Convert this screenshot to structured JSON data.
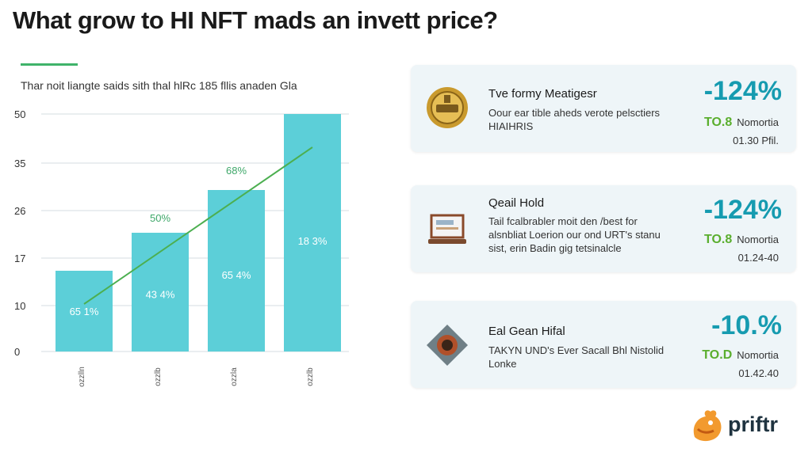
{
  "title": "What grow to HI NFT mads an invett price?",
  "subtitle": "Thar noit liangte saids sith thal hlRc 185 fllis anaden Gla",
  "chart_data": {
    "type": "bar",
    "y_ticks": [
      "50",
      "35",
      "26",
      "17",
      "10",
      "0"
    ],
    "categories": [
      "ozzlln",
      "ozzlb",
      "ozzla",
      "ozzlb"
    ],
    "values": [
      17,
      25,
      34,
      50
    ],
    "bar_labels": [
      "65 1%",
      "43 4%",
      "65 4%",
      "18 3%"
    ],
    "line_labels": [
      "50%",
      "68%"
    ],
    "trend_line": [
      10,
      43
    ],
    "ylim": [
      0,
      50
    ],
    "grid": true,
    "colors": {
      "bar": "#5ccfd8",
      "line": "#4caf50",
      "line_label": "#3fa86a"
    }
  },
  "cards": [
    {
      "icon": "coin-icon",
      "title": "Tve formy Meatigesr",
      "description": "Oour ear tible aheds verote pelsctiers HIAIHRIS",
      "value": "-124%",
      "change": "TO.8",
      "change_label": "Nomortia",
      "time": "01.30 Pfil."
    },
    {
      "icon": "laptop-icon",
      "title": "Qeail Hold",
      "description": "Tail fcalbrabler moit den /best for alsnbliat Loerion our ond URT's stanu sist, erin Badin gig tetsinalcle",
      "value": "-124%",
      "change": "TO.8",
      "change_label": "Nomortia",
      "time": "01.24-40"
    },
    {
      "icon": "diamond-coin-icon",
      "title": "Eal Gean Hifal",
      "description": "TAKYN UND's Ever Sacall Bhl Nistolid Lonke",
      "value": "-10.%",
      "change": "TO.D",
      "change_label": "Nomortia",
      "time": "01.42.40"
    }
  ],
  "brand": {
    "name": "priftr",
    "logo": "rooster-logo-icon"
  }
}
